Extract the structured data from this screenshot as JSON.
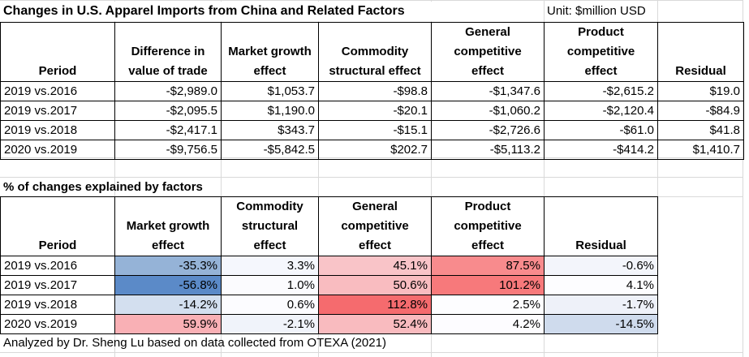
{
  "title": "Changes in U.S. Apparel Imports from China and Related Factors",
  "unit_label": "Unit: $million USD",
  "value_table": {
    "headers": [
      "Period",
      "Difference in value of trade",
      "Market growth effect",
      "Commodity structural effect",
      "General competitive effect",
      "Product competitive effect",
      "Residual"
    ],
    "header_lines": [
      [
        "",
        "",
        "Period"
      ],
      [
        "",
        "Difference in",
        "value of trade"
      ],
      [
        "",
        "Market growth",
        "effect"
      ],
      [
        "",
        "Commodity",
        "structural effect"
      ],
      [
        "General",
        "competitive",
        "effect"
      ],
      [
        "Product",
        "competitive",
        "effect"
      ],
      [
        "",
        "",
        "Residual"
      ]
    ],
    "rows": [
      [
        "2019 vs.2016",
        "-$2,989.0",
        "$1,053.7",
        "-$98.8",
        "-$1,347.6",
        "-$2,615.2",
        "$19.0"
      ],
      [
        "2019 vs.2017",
        "-$2,095.5",
        "$1,190.0",
        "-$20.1",
        "-$1,060.2",
        "-$2,120.4",
        "-$84.9"
      ],
      [
        "2019 vs.2018",
        "-$2,417.1",
        "$343.7",
        "-$15.1",
        "-$2,726.6",
        "-$61.0",
        "$41.8"
      ],
      [
        "2020 vs.2019",
        "-$9,756.5",
        "-$5,842.5",
        "$202.7",
        "-$5,113.2",
        "-$414.2",
        "$1,410.7"
      ]
    ]
  },
  "percent_table": {
    "subtitle": "% of changes explained by factors",
    "headers": [
      "Period",
      "Market growth effect",
      "Commodity structural effect",
      "General competitive effect",
      "Product competitive effect",
      "Residual"
    ],
    "header_lines": [
      [
        "",
        "",
        "Period"
      ],
      [
        "",
        "Market growth",
        "effect"
      ],
      [
        "Commodity",
        "structural",
        "effect"
      ],
      [
        "General",
        "competitive",
        "effect"
      ],
      [
        "Product",
        "competitive",
        "effect"
      ],
      [
        "",
        "",
        "Residual"
      ]
    ],
    "rows": [
      [
        "2019 vs.2016",
        "-35.3%",
        "3.3%",
        "45.1%",
        "87.5%",
        "-0.6%"
      ],
      [
        "2019 vs.2017",
        "-56.8%",
        "1.0%",
        "50.6%",
        "101.2%",
        "4.1%"
      ],
      [
        "2019 vs.2018",
        "-14.2%",
        "0.6%",
        "112.8%",
        "2.5%",
        "-1.7%"
      ],
      [
        "2020 vs.2019",
        "59.9%",
        "-2.1%",
        "52.4%",
        "4.2%",
        "-14.5%"
      ]
    ],
    "cell_colors": [
      [
        "#ffffff",
        "#95b3d7",
        "#f5f7fd",
        "#f9c4c8",
        "#f88b8d",
        "#f3f5fb"
      ],
      [
        "#ffffff",
        "#5b8ac8",
        "#fbfbfe",
        "#f9bcc0",
        "#f7797b",
        "#fdfdff"
      ],
      [
        "#ffffff",
        "#d3dfef",
        "#fcfcff",
        "#f56b6e",
        "#fdfdff",
        "#eef1f9"
      ],
      [
        "#ffffff",
        "#f9b0b5",
        "#f0f3fa",
        "#f9bbbf",
        "#fdfcff",
        "#cfdbed"
      ]
    ]
  },
  "footer": "Analyzed by Dr. Sheng Lu based on data collected from OTEXA (2021)"
}
